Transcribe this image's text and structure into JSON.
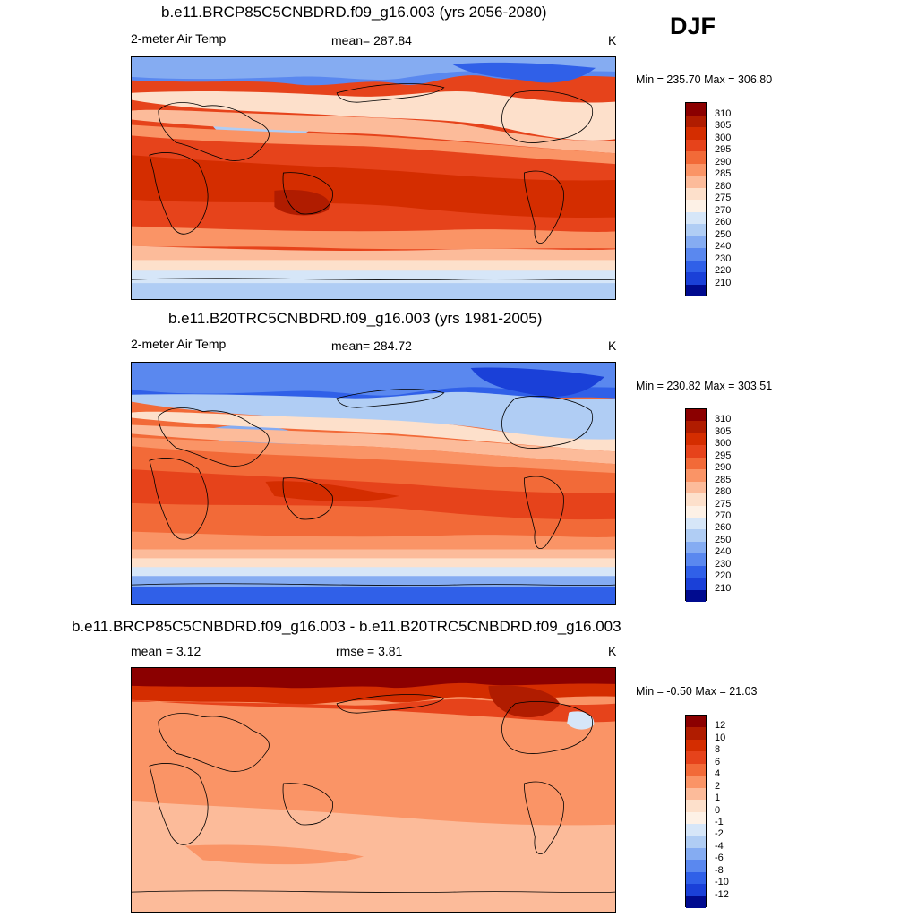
{
  "season": "DJF",
  "panels": [
    {
      "title": "b.e11.BRCP85C5CNBDRD.f09_g16.003 (yrs 2056-2080)",
      "left_label": "2-meter Air Temp",
      "center_label": "mean= 287.84",
      "units": "K",
      "minmax": "Min = 235.70 Max = 306.80"
    },
    {
      "title": "b.e11.B20TRC5CNBDRD.f09_g16.003 (yrs 1981-2005)",
      "left_label": "2-meter Air Temp",
      "center_label": "mean= 284.72",
      "units": "K",
      "minmax": "Min = 230.82 Max = 303.51"
    },
    {
      "title": "b.e11.BRCP85C5CNBDRD.f09_g16.003 - b.e11.B20TRC5CNBDRD.f09_g16.003",
      "left_label": "mean =   3.12",
      "center_label": "rmse =   3.81",
      "units": "K",
      "minmax": "Min =  -0.50 Max =  21.03"
    }
  ],
  "abs_colorbar": {
    "labels": [
      "310",
      "305",
      "300",
      "295",
      "290",
      "285",
      "280",
      "275",
      "270",
      "260",
      "250",
      "240",
      "230",
      "220",
      "210"
    ],
    "colors": [
      "#8b0000",
      "#b01c00",
      "#d42d00",
      "#e6431b",
      "#f26a38",
      "#fa9466",
      "#fcbb9a",
      "#fde0cb",
      "#fdf1e6",
      "#d6e6f8",
      "#b0cdf4",
      "#85acf2",
      "#5a88ef",
      "#3060e8",
      "#1a40d8",
      "#000b8f"
    ]
  },
  "diff_colorbar": {
    "labels": [
      "12",
      "10",
      "8",
      "6",
      "4",
      "2",
      "1",
      "0",
      "-1",
      "-2",
      "-4",
      "-6",
      "-8",
      "-10",
      "-12"
    ],
    "colors": [
      "#8b0000",
      "#b01c00",
      "#d42d00",
      "#e6431b",
      "#f26a38",
      "#fa9466",
      "#fcbb9a",
      "#fde0cb",
      "#fdf1e6",
      "#d6e6f8",
      "#b0cdf4",
      "#85acf2",
      "#5a88ef",
      "#3060e8",
      "#1a40d8",
      "#000b8f"
    ]
  }
}
